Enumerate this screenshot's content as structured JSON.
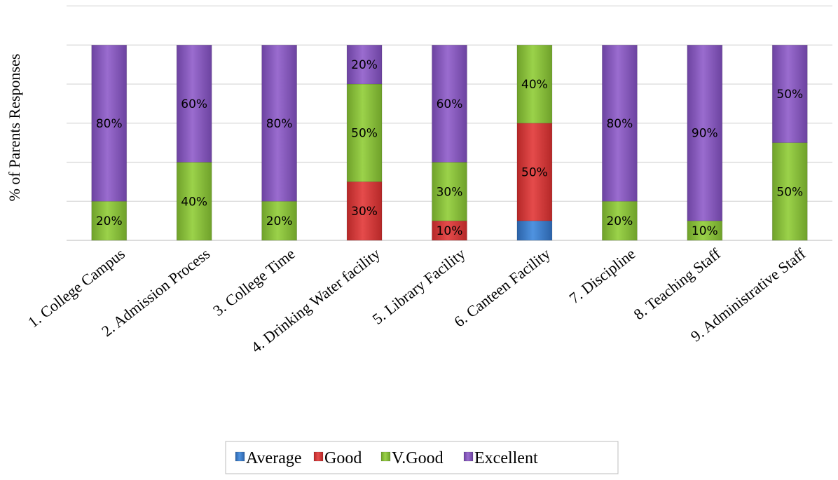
{
  "chart_data": {
    "type": "bar",
    "stacked": true,
    "title": "",
    "xlabel": "",
    "ylabel": "% of Parents Responses",
    "ylim": [
      0,
      120
    ],
    "grid": true,
    "legend_position": "bottom",
    "categories": [
      "1. College Campus",
      "2. Admission Process",
      "3. College Time",
      "4. Drinking Water facility",
      "5. Library Facility",
      "6. Canteen Facility",
      "7. Discipline",
      "8. Teaching Staff",
      "9. Administrative Staff"
    ],
    "series": [
      {
        "name": "Average",
        "color": "#3f7fd0",
        "values": [
          0,
          0,
          0,
          0,
          0,
          10,
          0,
          0,
          0
        ],
        "labels": [
          "",
          "",
          "",
          "",
          "",
          "",
          "",
          "",
          ""
        ]
      },
      {
        "name": "Good",
        "color": "#d83a3a",
        "values": [
          0,
          0,
          0,
          30,
          10,
          50,
          0,
          0,
          0
        ],
        "labels": [
          "",
          "",
          "",
          "30%",
          "10%",
          "50%",
          "",
          "",
          ""
        ]
      },
      {
        "name": "V.Good",
        "color": "#8cc63f",
        "values": [
          20,
          40,
          20,
          50,
          30,
          40,
          20,
          10,
          50
        ],
        "labels": [
          "20%",
          "40%",
          "20%",
          "50%",
          "30%",
          "40%",
          "20%",
          "10%",
          "50%"
        ]
      },
      {
        "name": "Excellent",
        "color": "#8a5cc0",
        "values": [
          80,
          60,
          80,
          20,
          60,
          0,
          80,
          90,
          50
        ],
        "labels": [
          "80%",
          "60%",
          "80%",
          "20%",
          "60%",
          "",
          "80%",
          "90%",
          "50%"
        ]
      }
    ]
  }
}
